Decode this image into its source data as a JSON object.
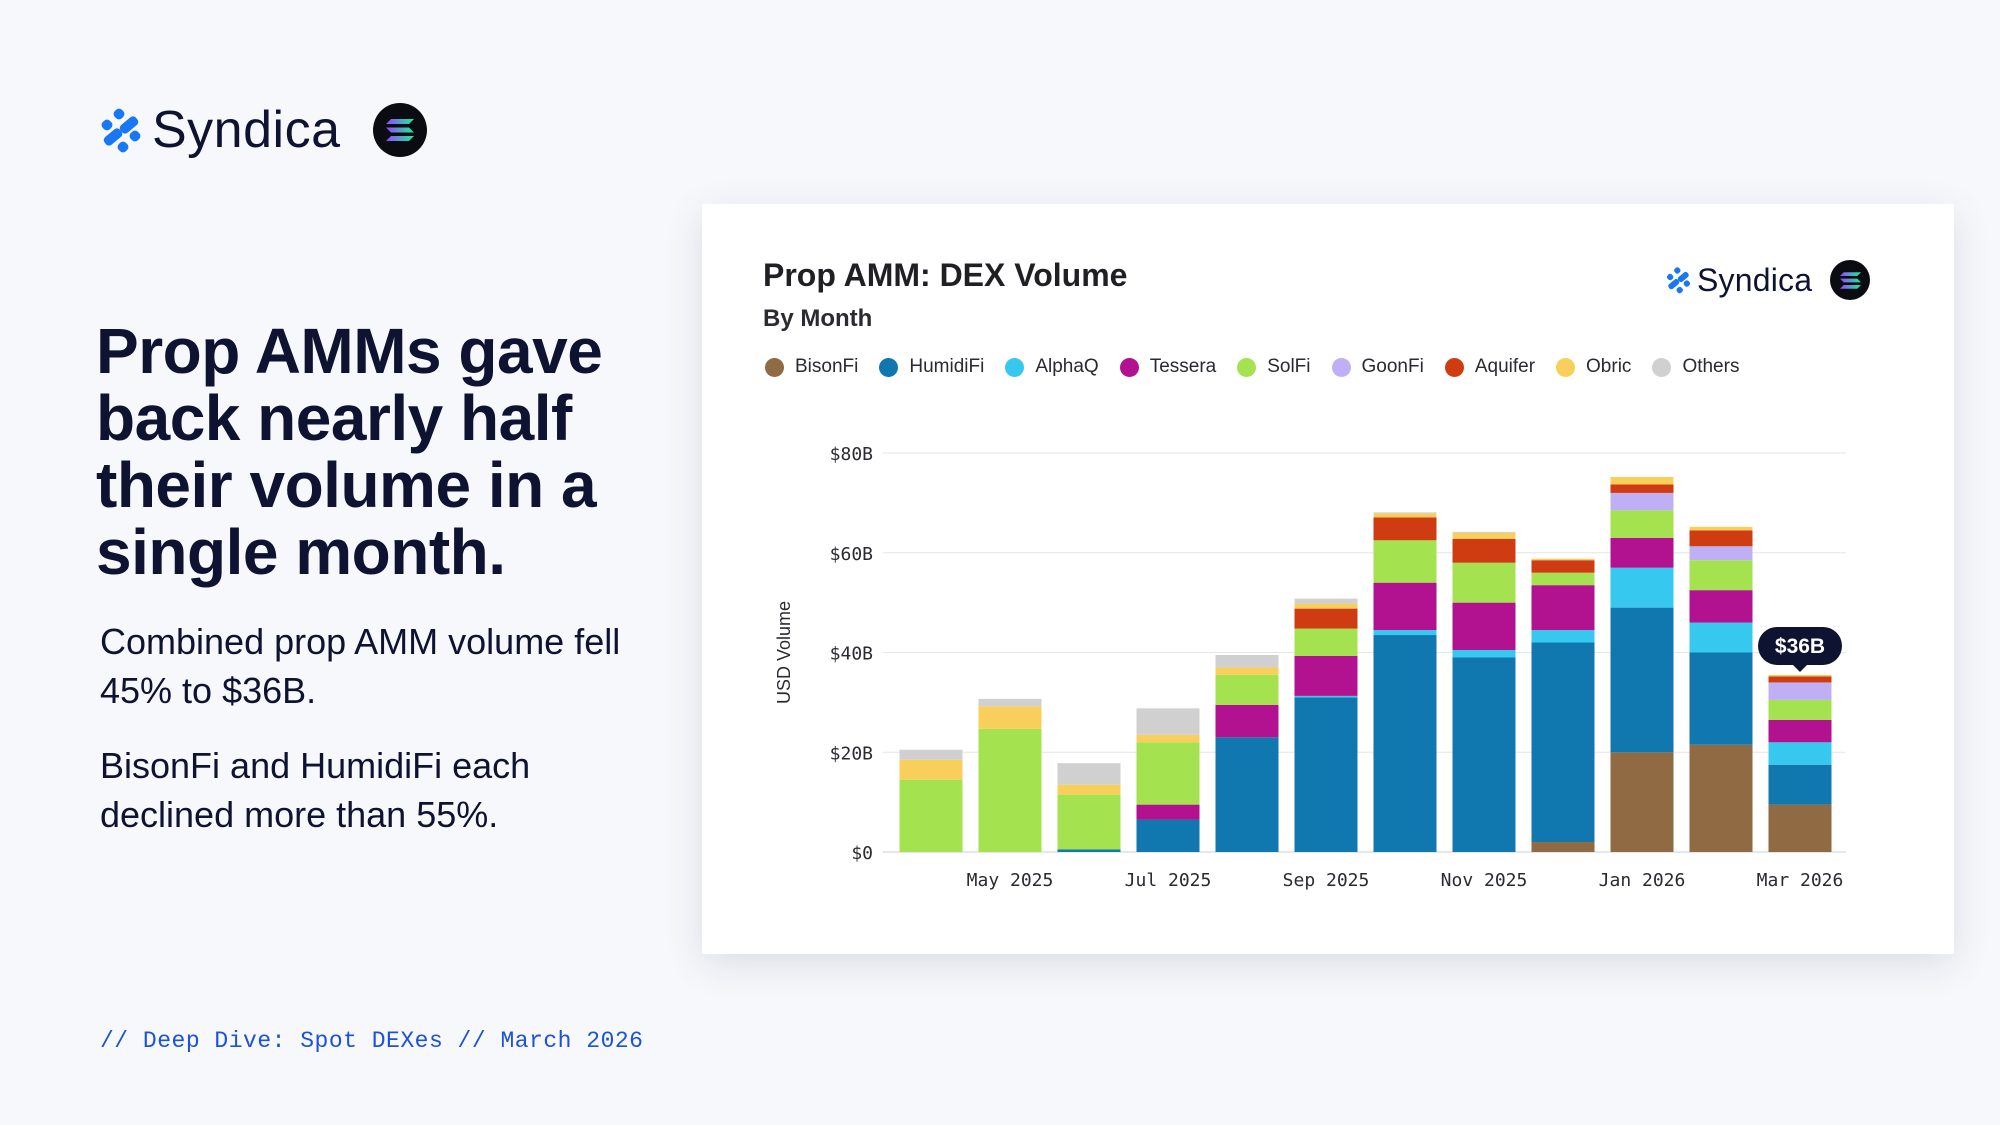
{
  "brand": {
    "name": "Syndica",
    "icons": [
      "syndica-logo-icon",
      "solana-logo-icon"
    ]
  },
  "headline": "Prop AMMs gave back nearly half their volume in a single month.",
  "paragraphs": [
    "Combined prop AMM volume fell 45% to $36B.",
    "BisonFi and HumidiFi each declined more than 55%."
  ],
  "footer": "// Deep Dive: Spot DEXes // March 2026",
  "colors": {
    "text_dark": "#0d1330",
    "accent_blue": "#1c52d6",
    "logo_blue": "#1877f2"
  },
  "chart_data": {
    "type": "bar",
    "stacked": true,
    "title": "Prop AMM: DEX Volume",
    "subtitle": "By Month",
    "xlabel": "",
    "ylabel": "USD Volume",
    "ylim": [
      0,
      80
    ],
    "yticks": [
      0,
      20,
      40,
      60,
      80
    ],
    "ytick_labels": [
      "$0",
      "$20B",
      "$40B",
      "$60B",
      "$80B"
    ],
    "unit": "$B",
    "categories": [
      "Apr 2025",
      "May 2025",
      "Jun 2025",
      "Jul 2025",
      "Aug 2025",
      "Sep 2025",
      "Oct 2025",
      "Nov 2025",
      "Dec 2025",
      "Jan 2026",
      "Feb 2026",
      "Mar 2026"
    ],
    "xtick_labels": [
      "",
      "May 2025",
      "",
      "Jul 2025",
      "",
      "Sep 2025",
      "",
      "Nov 2025",
      "",
      "Jan 2026",
      "",
      "Mar 2026"
    ],
    "legend_position": "top",
    "series": [
      {
        "name": "BisonFi",
        "color": "#8f6a42",
        "values": [
          0,
          0,
          0,
          0,
          0,
          0,
          0,
          0,
          2,
          20,
          21.5,
          9.5
        ]
      },
      {
        "name": "HumidiFi",
        "color": "#1077af",
        "values": [
          0,
          0,
          0.5,
          6.5,
          23,
          31,
          43.5,
          39,
          40,
          29,
          18.5,
          8
        ]
      },
      {
        "name": "AlphaQ",
        "color": "#36c8ee",
        "values": [
          0,
          0,
          0,
          0,
          0,
          0.3,
          1,
          1.5,
          2.5,
          8,
          6,
          4.5
        ]
      },
      {
        "name": "Tessera",
        "color": "#b2118f",
        "values": [
          0,
          0,
          0,
          3,
          6.5,
          8,
          9.5,
          9.5,
          9,
          6,
          6.5,
          4.5
        ]
      },
      {
        "name": "SolFi",
        "color": "#a4e34f",
        "values": [
          14.5,
          24.7,
          11,
          12.5,
          6,
          5.5,
          8.5,
          8,
          2.5,
          5.5,
          6,
          4
        ]
      },
      {
        "name": "GoonFi",
        "color": "#bfb0f6",
        "values": [
          0,
          0,
          0,
          0,
          0,
          0,
          0,
          0,
          0,
          3.5,
          2.8,
          3.5
        ]
      },
      {
        "name": "Aquifer",
        "color": "#cf3c12",
        "values": [
          0,
          0,
          0,
          0,
          0,
          4,
          4.6,
          4.8,
          2.5,
          1.7,
          3.2,
          1.2
        ]
      },
      {
        "name": "Obric",
        "color": "#f8cf5a",
        "values": [
          4,
          4.5,
          2,
          1.5,
          1.5,
          1,
          0.8,
          1.2,
          0.3,
          1.5,
          0.7,
          0.3
        ]
      },
      {
        "name": "Others",
        "color": "#d0d0d0",
        "values": [
          2,
          1.5,
          4.3,
          5.3,
          2.5,
          1,
          0.2,
          0.2,
          0,
          0,
          0,
          0
        ]
      }
    ],
    "annotations": [
      {
        "category": "Mar 2026",
        "text": "$36B"
      }
    ]
  }
}
